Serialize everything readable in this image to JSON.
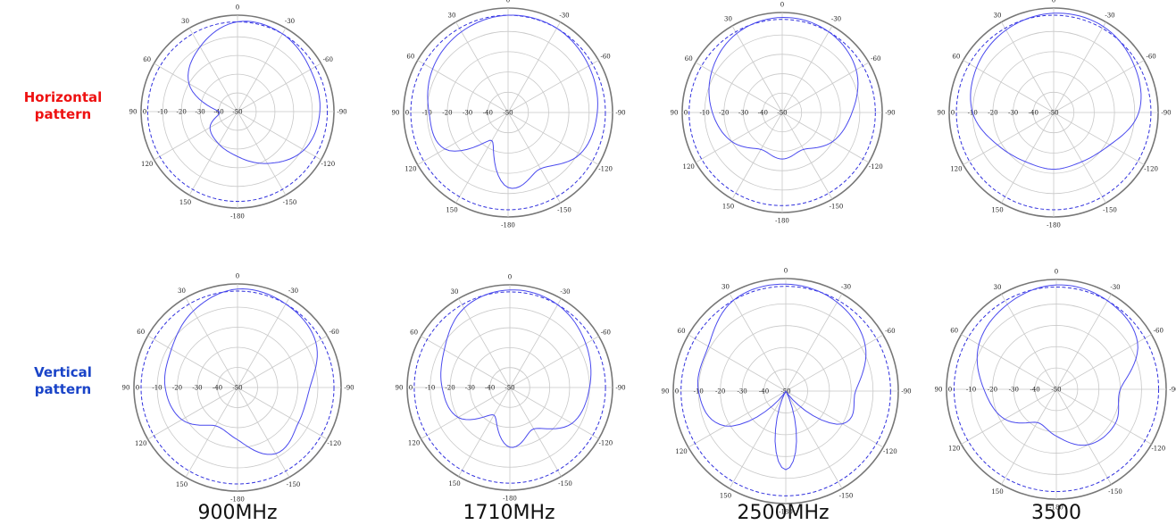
{
  "rows": [
    {
      "label_line1": "Horizontal",
      "label_line2": "pattern",
      "color": "#ee1111"
    },
    {
      "label_line1": "Vertical",
      "label_line2": "pattern",
      "color": "#1a44c8"
    }
  ],
  "frequencies": [
    "900MHz",
    "1710MHz",
    "2500MHz",
    "3500"
  ],
  "chart_data": [
    {
      "type": "polar",
      "row": "Horizontal pattern",
      "frequency": "900MHz",
      "angle_ticks": [
        0,
        -30,
        -60,
        -90,
        -120,
        -150,
        -180,
        150,
        120,
        90,
        60,
        30
      ],
      "radial_ticks": [
        -10,
        -20,
        -30,
        -40,
        -50
      ],
      "radial_range_db": [
        -50,
        0
      ],
      "reference_circle_db": -2,
      "grid": true,
      "series": [
        {
          "angles_deg": [
            0,
            30,
            60,
            90,
            120,
            150,
            180,
            -150,
            -120,
            -90,
            -60,
            -30
          ],
          "gain_db": [
            -2,
            -10,
            -20,
            -40,
            -33,
            -30,
            -26,
            -18,
            -9,
            -6,
            -5,
            -2
          ]
        }
      ]
    },
    {
      "type": "polar",
      "row": "Horizontal pattern",
      "frequency": "1710MHz",
      "angle_ticks": [
        0,
        -30,
        -60,
        -90,
        -120,
        -150,
        -180,
        150,
        120,
        90,
        60,
        30
      ],
      "radial_ticks": [
        -10,
        -20,
        -30,
        -40,
        -50
      ],
      "radial_range_db": [
        -50,
        0
      ],
      "reference_circle_db": -2,
      "grid": true,
      "series": [
        {
          "angles_deg": [
            0,
            30,
            60,
            90,
            120,
            150,
            180,
            -150,
            -120,
            -90,
            -60,
            -30
          ],
          "gain_db": [
            -2,
            -4,
            -7,
            -11,
            -14,
            -34,
            -13,
            -18,
            -9,
            -6,
            -4,
            -2
          ]
        }
      ]
    },
    {
      "type": "polar",
      "row": "Horizontal pattern",
      "frequency": "2500MHz",
      "angle_ticks": [
        0,
        -30,
        -60,
        -90,
        -120,
        -150,
        -180,
        150,
        120,
        90,
        60,
        30
      ],
      "radial_ticks": [
        -10,
        -20,
        -30,
        -40,
        -50
      ],
      "radial_range_db": [
        -50,
        0
      ],
      "reference_circle_db": -2,
      "grid": true,
      "series": [
        {
          "angles_deg": [
            0,
            30,
            60,
            90,
            120,
            150,
            180,
            -150,
            -120,
            -90,
            -60,
            -30
          ],
          "gain_db": [
            -1,
            -3,
            -8,
            -14,
            -20,
            -28,
            -26,
            -28,
            -20,
            -14,
            -6,
            -2
          ]
        }
      ]
    },
    {
      "type": "polar",
      "row": "Horizontal pattern",
      "frequency": "3500",
      "angle_ticks": [
        0,
        -30,
        -60,
        -90,
        -120,
        -150,
        -180,
        150,
        120,
        90,
        60,
        30
      ],
      "radial_ticks": [
        -10,
        -20,
        -30,
        -40,
        -50
      ],
      "radial_range_db": [
        -50,
        0
      ],
      "reference_circle_db": -2,
      "grid": true,
      "series": [
        {
          "angles_deg": [
            0,
            30,
            60,
            90,
            120,
            150,
            180,
            -150,
            -120,
            -90,
            -60,
            -30
          ],
          "gain_db": [
            -1,
            -3,
            -6,
            -10,
            -18,
            -22,
            -22,
            -22,
            -18,
            -8,
            -4,
            -1
          ]
        }
      ]
    },
    {
      "type": "polar",
      "row": "Vertical pattern",
      "frequency": "900MHz",
      "angle_ticks": [
        0,
        -30,
        -60,
        -90,
        -120,
        -150,
        -180,
        150,
        120,
        90,
        60,
        30
      ],
      "radial_ticks": [
        -10,
        -20,
        -30,
        -40,
        -50
      ],
      "radial_range_db": [
        -50,
        0
      ],
      "reference_circle_db": -2,
      "grid": true,
      "series": [
        {
          "angles_deg": [
            0,
            30,
            60,
            90,
            120,
            150,
            180,
            -150,
            -120,
            -90,
            -60,
            -30
          ],
          "gain_db": [
            -1,
            -6,
            -12,
            -14,
            -18,
            -28,
            -24,
            -12,
            -15,
            -14,
            -5,
            -2
          ]
        }
      ]
    },
    {
      "type": "polar",
      "row": "Vertical pattern",
      "frequency": "1710MHz",
      "angle_ticks": [
        0,
        -30,
        -60,
        -90,
        -120,
        -150,
        -180,
        150,
        120,
        90,
        60,
        30
      ],
      "radial_ticks": [
        -10,
        -20,
        -30,
        -40,
        -50
      ],
      "radial_range_db": [
        -50,
        0
      ],
      "reference_circle_db": -2,
      "grid": true,
      "series": [
        {
          "angles_deg": [
            0,
            30,
            60,
            90,
            120,
            150,
            180,
            -150,
            -120,
            -90,
            -60,
            -30
          ],
          "gain_db": [
            -1,
            -4,
            -12,
            -16,
            -20,
            -34,
            -20,
            -26,
            -14,
            -10,
            -6,
            -2
          ]
        }
      ]
    },
    {
      "type": "polar",
      "row": "Vertical pattern",
      "frequency": "2500MHz",
      "angle_ticks": [
        0,
        -30,
        -60,
        -90,
        -120,
        -150,
        -180,
        150,
        120,
        90,
        60,
        30
      ],
      "radial_ticks": [
        -10,
        -20,
        -30,
        -40,
        -50
      ],
      "radial_range_db": [
        -50,
        0
      ],
      "reference_circle_db": -2,
      "grid": true,
      "series": [
        {
          "angles_deg": [
            0,
            30,
            60,
            90,
            120,
            150,
            180,
            -150,
            -120,
            -90,
            -60,
            -30
          ],
          "gain_db": [
            -1,
            -2,
            -9,
            -10,
            -18,
            -50,
            -14,
            -50,
            -20,
            -18,
            -8,
            -3
          ]
        }
      ]
    },
    {
      "type": "polar",
      "row": "Vertical pattern",
      "frequency": "3500",
      "angle_ticks": [
        0,
        -30,
        -60,
        -90,
        -120,
        -150,
        -180,
        150,
        120,
        90,
        60,
        30
      ],
      "radial_ticks": [
        -10,
        -20,
        -30,
        -40,
        -50
      ],
      "radial_range_db": [
        -50,
        0
      ],
      "reference_circle_db": -2,
      "grid": true,
      "series": [
        {
          "angles_deg": [
            0,
            30,
            60,
            90,
            120,
            150,
            180,
            -150,
            -120,
            -90,
            -60,
            -30
          ],
          "gain_db": [
            -1,
            -4,
            -8,
            -16,
            -22,
            -32,
            -28,
            -20,
            -18,
            -20,
            -6,
            -2
          ]
        }
      ]
    }
  ],
  "colors": {
    "pattern_line": "#4a4aee",
    "reference_line": "#3030dd",
    "grid": "#c8c8c8",
    "outer_ring": "#777777"
  }
}
